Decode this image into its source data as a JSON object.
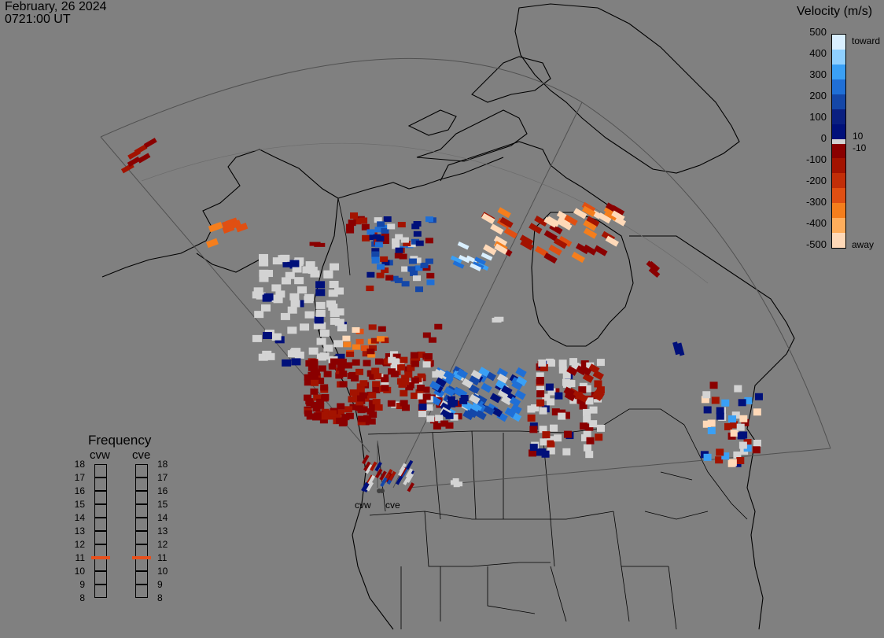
{
  "header": {
    "date": "February, 26 2024",
    "time": "0721:00 UT"
  },
  "colorbar": {
    "title": "Velocity (m/s)",
    "ticks": [
      "500",
      "400",
      "300",
      "200",
      "100",
      "0",
      "-100",
      "-200",
      "-300",
      "-400",
      "-500"
    ],
    "small_pos": "10",
    "small_neg": "-10",
    "toward_label": "toward",
    "away_label": "away",
    "toward_colors": [
      "#d9efff",
      "#8fd0ff",
      "#3aa0f5",
      "#1f6fd6",
      "#1447a8",
      "#0a1f80",
      "#00107a"
    ],
    "away_colors": [
      "#8a0000",
      "#a31300",
      "#c22e08",
      "#e04f12",
      "#f57e1c",
      "#ffae5c",
      "#ffd9b8"
    ],
    "low_color": "#d3d3d3"
  },
  "frequency": {
    "title": "Frequency",
    "radars": [
      "cvw",
      "cve"
    ],
    "scale": [
      "18",
      "17",
      "16",
      "15",
      "14",
      "13",
      "12",
      "11",
      "10",
      "9",
      "8"
    ],
    "values_mhz": [
      11,
      11
    ],
    "indicator_color": "#e8501c"
  },
  "radar_labels": [
    "cvw",
    "cve"
  ],
  "map": {
    "type": "polar-projection-velocity-map",
    "region": "North America",
    "grid": true
  }
}
